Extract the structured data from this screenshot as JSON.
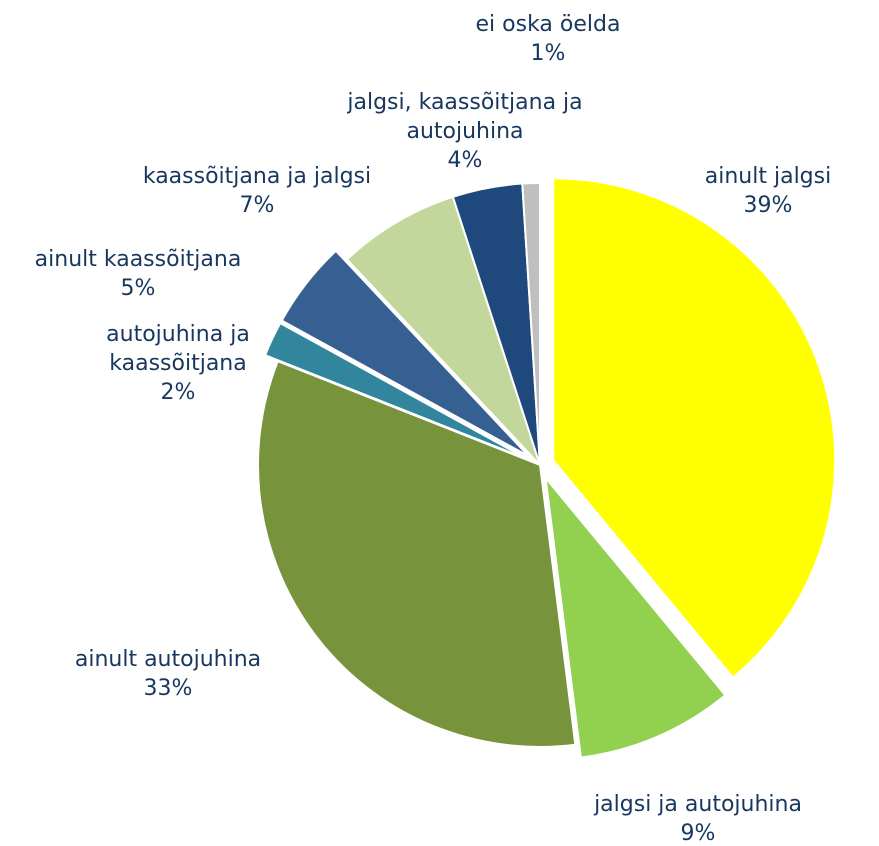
{
  "chart_data": {
    "type": "pie",
    "categories": [
      "ainult jalgsi",
      "jalgsi ja autojuhina",
      "ainult autojuhina",
      "autojuhina ja kaassõitjana",
      "ainult kaassõitjana",
      "kaassõitjana ja jalgsi",
      "jalgsi, kaassõitjana ja autojuhina",
      "ei oska öelda"
    ],
    "values": [
      39,
      9,
      33,
      2,
      5,
      7,
      4,
      1
    ],
    "value_labels": [
      "39%",
      "9%",
      "33%",
      "2%",
      "5%",
      "7%",
      "4%",
      "1%"
    ],
    "colors": [
      "#ffff00",
      "#92d050",
      "#77933c",
      "#31859c",
      "#376092",
      "#c3d69b",
      "#1f497d",
      "#bfbfbf"
    ]
  }
}
